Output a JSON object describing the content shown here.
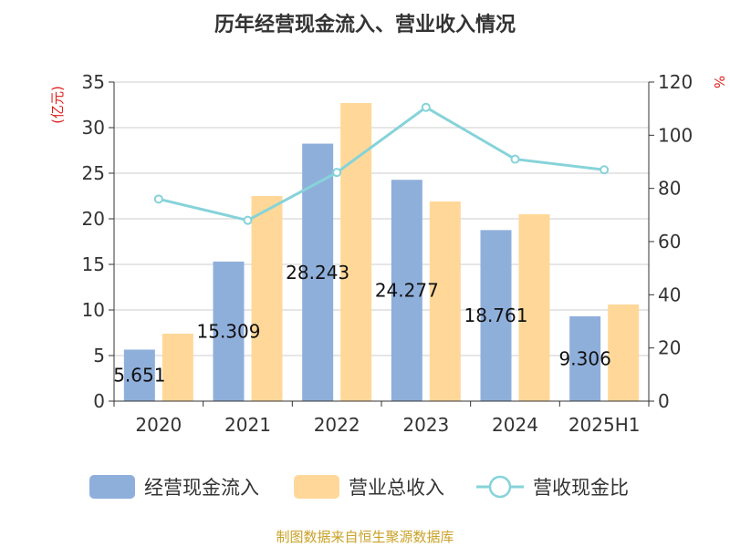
{
  "colors": {
    "cash_bar": "#8FAFDB",
    "revenue_bar": "#FFD899",
    "ratio_line": "#86D3D9",
    "unit_text": "#E0201C",
    "source_text": "#C9A227",
    "grid": "#CCCCCC",
    "axis": "#333333"
  },
  "source": "制图数据来自恒生聚源数据库",
  "chart_data": {
    "type": "bar",
    "title": "历年经营现金流入、营业收入情况",
    "categories": [
      "2020",
      "2021",
      "2022",
      "2023",
      "2024",
      "2025H1"
    ],
    "left_axis": {
      "unit": "(亿元)",
      "ylim": [
        0,
        35
      ],
      "ticks": [
        "0",
        "5",
        "10",
        "15",
        "20",
        "25",
        "30",
        "35"
      ]
    },
    "right_axis": {
      "unit": "%",
      "ylim": [
        0,
        120
      ],
      "ticks": [
        "0",
        "20",
        "40",
        "60",
        "80",
        "100",
        "120"
      ]
    },
    "grid": true,
    "legend_position": "bottom",
    "series": [
      {
        "name": "经营现金流入",
        "type": "bar",
        "axis": "left",
        "values": [
          5.651,
          15.309,
          28.243,
          24.277,
          18.761,
          9.306
        ],
        "labels": [
          "5.651",
          "15.309",
          "28.243",
          "24.277",
          "18.761",
          "9.306"
        ]
      },
      {
        "name": "营业总收入",
        "type": "bar",
        "axis": "left",
        "values": [
          7.4,
          22.5,
          32.7,
          21.9,
          20.5,
          10.6
        ]
      },
      {
        "name": "营收现金比",
        "type": "line",
        "axis": "right",
        "values": [
          76,
          68,
          86,
          110.5,
          91,
          87
        ]
      }
    ]
  }
}
